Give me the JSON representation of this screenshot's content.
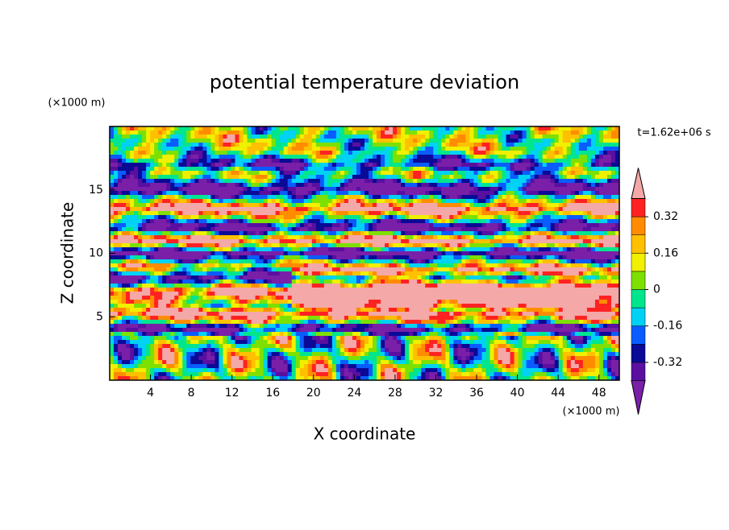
{
  "chart_data": {
    "type": "contour",
    "title": "potential temperature deviation",
    "x_label": "X coordinate",
    "y_label": "Z coordinate",
    "x_unit": "(×1000 m)",
    "y_unit": "(×1000 m)",
    "time_label": "t=1.62e+06 s",
    "xlim": [
      0,
      50
    ],
    "xticks": [
      4,
      8,
      12,
      16,
      20,
      24,
      28,
      32,
      36,
      40,
      44,
      48
    ],
    "ylim": [
      0,
      20
    ],
    "yticks": [
      5,
      10,
      15
    ],
    "levels": [
      -0.4,
      -0.32,
      -0.24,
      -0.16,
      -0.08,
      0,
      0.08,
      0.16,
      0.24,
      0.32,
      0.4
    ],
    "colors": [
      "#7a1fa8",
      "#5a0fa0",
      "#0a0a96",
      "#0a5cff",
      "#00d2f5",
      "#00e68c",
      "#7ee000",
      "#f0f000",
      "#ffc000",
      "#ff8c00",
      "#ff2222",
      "#f4a8a8"
    ],
    "colorbar_ticks": [
      -0.32,
      -0.16,
      0,
      0.16,
      0.32
    ]
  }
}
